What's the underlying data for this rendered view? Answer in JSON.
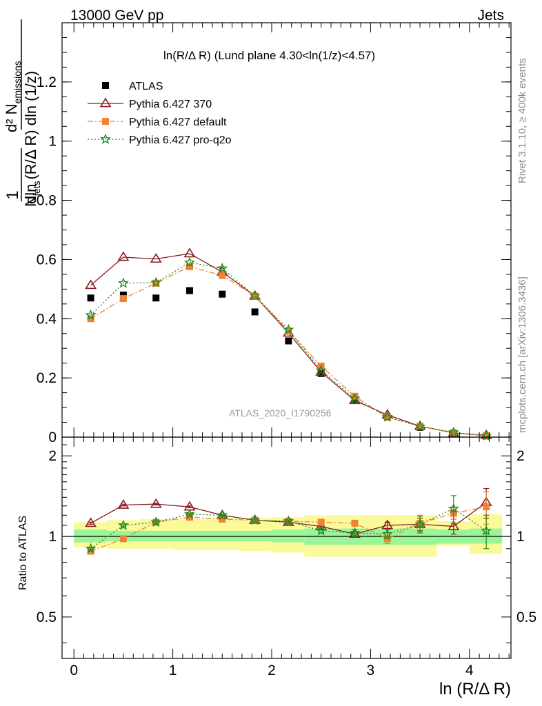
{
  "header": {
    "energy": "13000 GeV pp",
    "process": "Jets"
  },
  "side_labels": {
    "rivet": "Rivet 3.1.10, ≥ 400k events",
    "mcplots": "mcplots.cern.ch [arXiv:1306.3436]"
  },
  "plot_title": "ln(R/Δ R) (Lund plane 4.30<ln(1/z)<4.57)",
  "watermark": "ATLAS_2020_I1790256",
  "ylabel_main": "1/N_jets d²N_emissions / dln(R/Δ R) dln(1/z)",
  "ylabel_main_parts": {
    "one": "1",
    "njets": "N",
    "njets_sub": "jets",
    "num_d2": "d² N",
    "num_sub": "emissions",
    "den": "dln (R/Δ R) dln (1/z)"
  },
  "ylabel_ratio": "Ratio to ATLAS",
  "xlabel": "ln (R/Δ R)",
  "chart_data": [
    {
      "type": "scatter",
      "panel": "main",
      "x": [
        0.17,
        0.5,
        0.83,
        1.17,
        1.5,
        1.83,
        2.17,
        2.5,
        2.84,
        3.17,
        3.5,
        3.84,
        4.17
      ],
      "xlim": [
        -0.12,
        4.42
      ],
      "ylim": [
        0,
        1.4
      ],
      "yticks": [
        0,
        0.2,
        0.4,
        0.6,
        0.8,
        1,
        1.2
      ],
      "yticklabels": [
        "0",
        "0.2",
        "0.4",
        "0.6",
        "0.8",
        "1",
        "1.2"
      ],
      "legend_position": "top-left",
      "series": [
        {
          "name": "ATLAS",
          "style": "data",
          "marker": "square",
          "color": "#000000",
          "values": [
            0.47,
            0.48,
            0.47,
            0.495,
            0.483,
            0.423,
            0.325,
            0.215,
            0.128,
            0.068,
            0.033,
            0.012,
            0.004
          ]
        },
        {
          "name": "Pythia 6.427 370",
          "style": "solid",
          "marker": "triangle",
          "color": "#8b1a22",
          "values": [
            0.513,
            0.608,
            0.602,
            0.62,
            0.558,
            0.477,
            0.352,
            0.22,
            0.124,
            0.075,
            0.037,
            0.014,
            0.006
          ]
        },
        {
          "name": "Pythia 6.427 default",
          "style": "dashdot",
          "marker": "square",
          "color": "#f08232",
          "values": [
            0.4,
            0.468,
            0.52,
            0.576,
            0.546,
            0.477,
            0.358,
            0.24,
            0.138,
            0.067,
            0.037,
            0.015,
            0.005
          ]
        },
        {
          "name": "Pythia 6.427 pro-q2o",
          "style": "dotted",
          "marker": "star",
          "color": "#1f8a1f",
          "values": [
            0.412,
            0.52,
            0.522,
            0.59,
            0.57,
            0.477,
            0.363,
            0.225,
            0.13,
            0.068,
            0.036,
            0.016,
            0.004
          ]
        }
      ]
    },
    {
      "type": "line",
      "panel": "ratio",
      "x": [
        0.17,
        0.5,
        0.83,
        1.17,
        1.5,
        1.83,
        2.17,
        2.5,
        2.84,
        3.17,
        3.5,
        3.84,
        4.17
      ],
      "bin_edges": [
        0,
        0.33,
        0.67,
        1,
        1.33,
        1.67,
        2,
        2.33,
        2.67,
        3,
        3.33,
        3.67,
        4,
        4.33
      ],
      "xlim": [
        -0.12,
        4.42
      ],
      "ylim": [
        0.35,
        2.35
      ],
      "log_scale": true,
      "xticks": [
        0,
        1,
        2,
        3,
        4
      ],
      "xticklabels": [
        "0",
        "1",
        "2",
        "3",
        "4"
      ],
      "yticks": [
        0.5,
        1,
        2
      ],
      "yticklabels": [
        "0.5",
        "1",
        "2"
      ],
      "reference_line": 1,
      "band_inner": {
        "lo": [
          0.95,
          0.96,
          0.96,
          0.96,
          0.96,
          0.96,
          0.95,
          0.93,
          0.93,
          0.93,
          0.93,
          0.94,
          0.94
        ],
        "hi": [
          1.06,
          1.05,
          1.05,
          1.05,
          1.05,
          1.05,
          1.06,
          1.07,
          1.07,
          1.07,
          1.07,
          1.06,
          1.07
        ],
        "color": "#98f598"
      },
      "band_outer": {
        "lo": [
          0.91,
          0.9,
          0.9,
          0.89,
          0.89,
          0.88,
          0.87,
          0.84,
          0.84,
          0.84,
          0.84,
          0.92,
          0.86
        ],
        "hi": [
          1.13,
          1.15,
          1.16,
          1.16,
          1.17,
          1.17,
          1.18,
          1.2,
          1.2,
          1.2,
          1.2,
          1.14,
          1.21
        ],
        "color": "#fafa9a"
      },
      "series": [
        {
          "name": "Pythia 6.427 370",
          "style": "solid",
          "marker": "triangle",
          "color": "#8b1a22",
          "values": [
            1.12,
            1.31,
            1.32,
            1.29,
            1.2,
            1.15,
            1.13,
            1.09,
            1.02,
            1.1,
            1.11,
            1.09,
            1.34
          ],
          "err": [
            0.01,
            0.01,
            0.01,
            0.01,
            0.01,
            0.01,
            0.01,
            0.01,
            0.02,
            0.03,
            0.06,
            0.07,
            0.17
          ]
        },
        {
          "name": "Pythia 6.427 default",
          "style": "dashdot",
          "marker": "square",
          "color": "#f08232",
          "values": [
            0.88,
            0.98,
            1.13,
            1.18,
            1.16,
            1.15,
            1.14,
            1.13,
            1.12,
            0.98,
            1.12,
            1.22,
            1.29
          ],
          "err": [
            0.01,
            0.01,
            0.01,
            0.01,
            0.01,
            0.01,
            0.01,
            0.02,
            0.03,
            0.04,
            0.08,
            0.06,
            0.18
          ]
        },
        {
          "name": "Pythia 6.427 pro-q2o",
          "style": "dotted",
          "marker": "star",
          "color": "#1f8a1f",
          "values": [
            0.9,
            1.1,
            1.13,
            1.21,
            1.2,
            1.15,
            1.14,
            1.05,
            1.03,
            1.02,
            1.11,
            1.27,
            1.05
          ],
          "err": [
            0.01,
            0.01,
            0.01,
            0.01,
            0.01,
            0.01,
            0.01,
            0.02,
            0.03,
            0.04,
            0.08,
            0.15,
            0.15
          ]
        }
      ]
    }
  ]
}
